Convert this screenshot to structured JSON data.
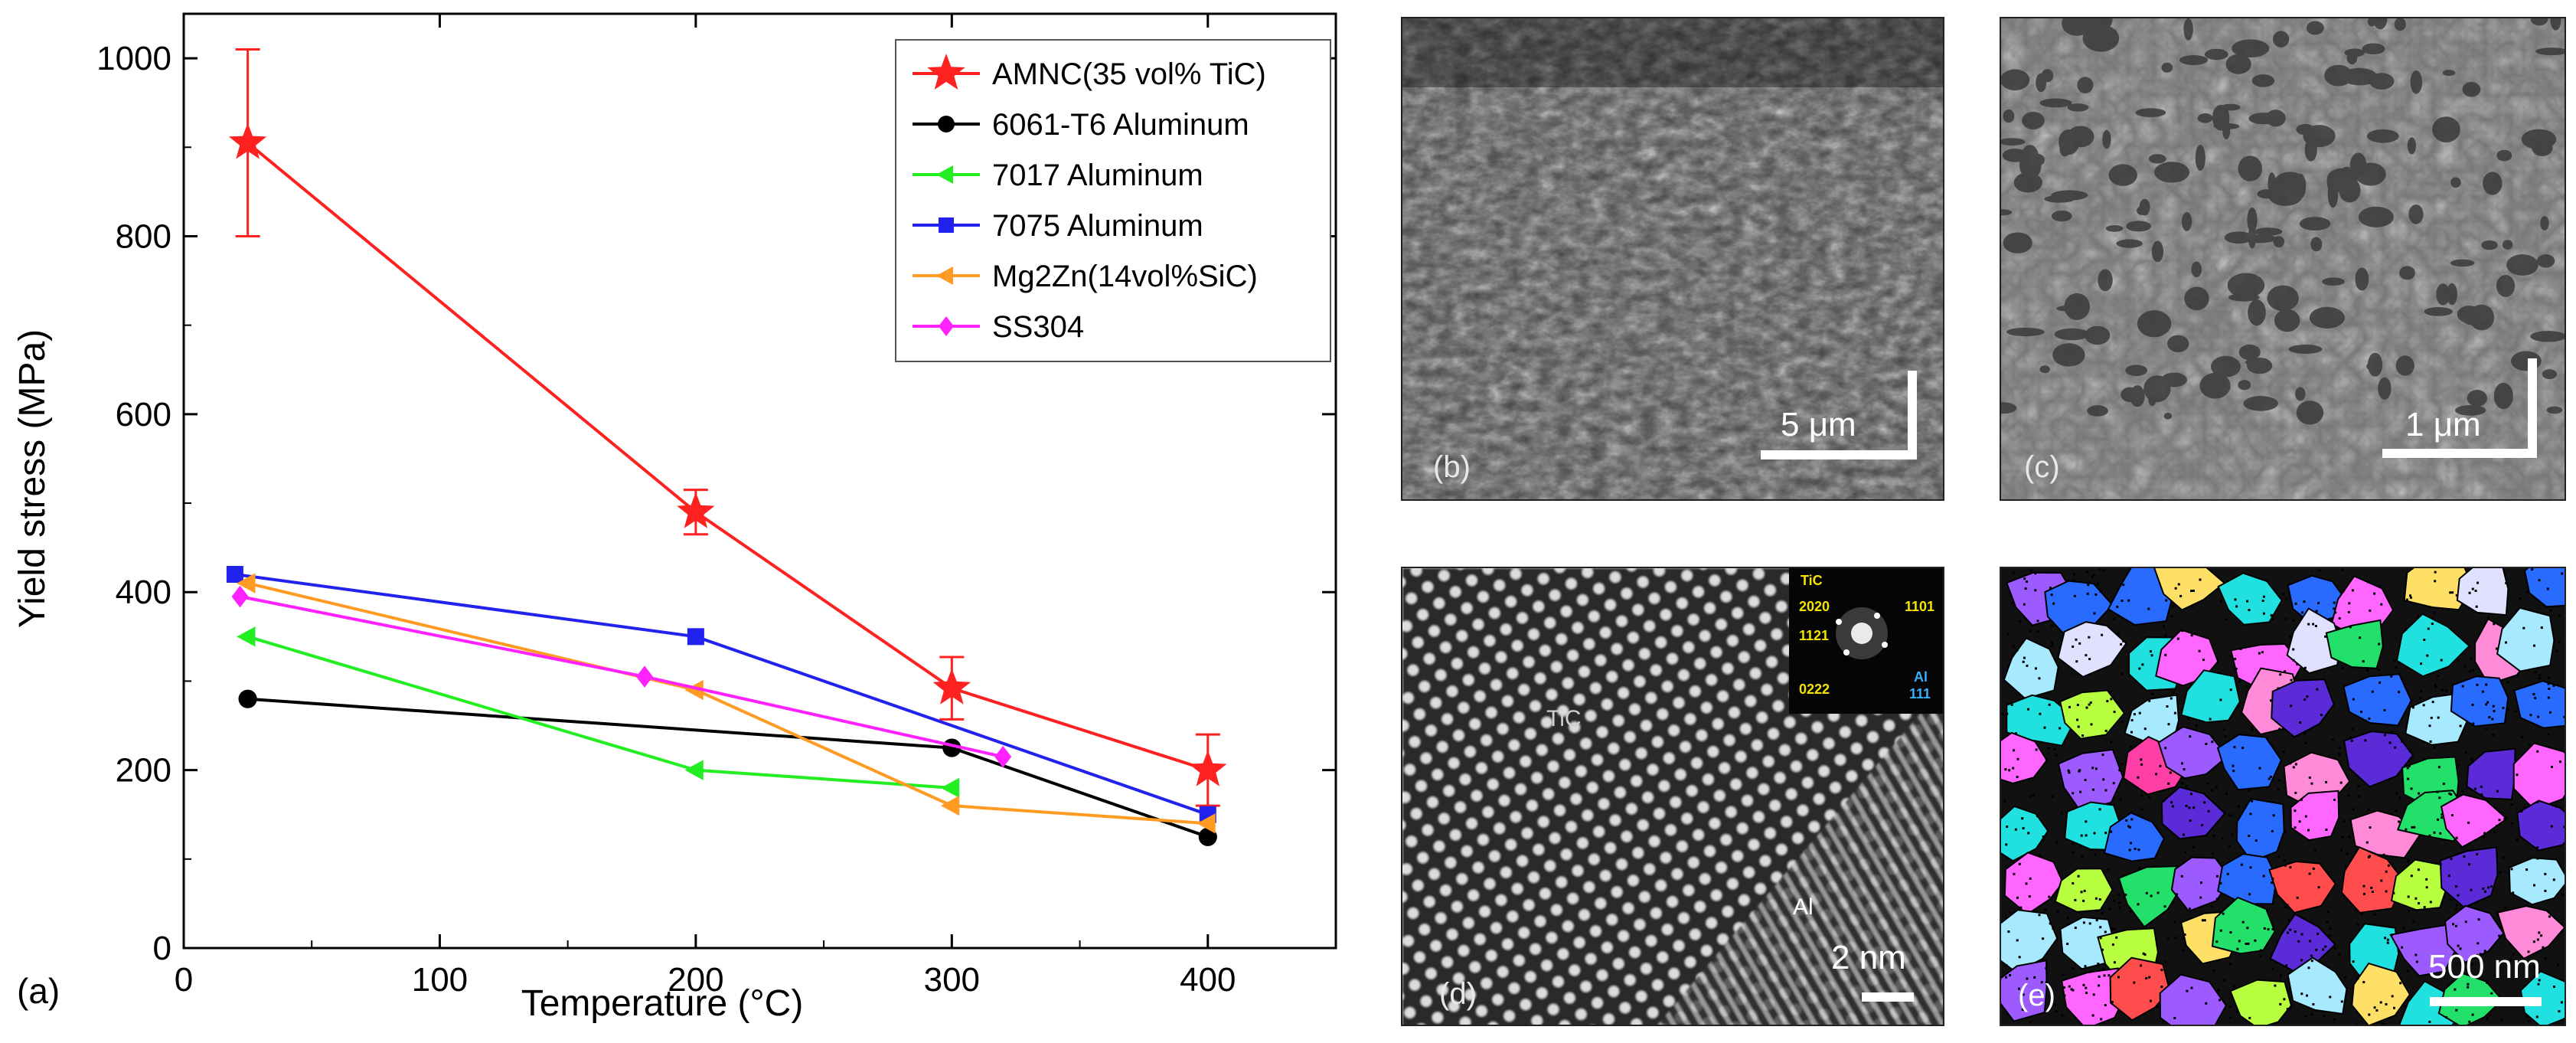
{
  "chart_data": {
    "type": "line",
    "panel_label": "(a)",
    "xlabel": "Temperature (°C)",
    "ylabel": "Yield stress (MPa)",
    "xlim": [
      0,
      450
    ],
    "ylim": [
      0,
      1050
    ],
    "xticks": [
      0,
      100,
      200,
      300,
      400
    ],
    "yticks": [
      0,
      200,
      400,
      600,
      800,
      1000
    ],
    "grid": false,
    "legend_position": "top-right",
    "series": [
      {
        "name": "AMNC(35 vol% TiC)",
        "color": "#ff2020",
        "marker": "star",
        "x": [
          25,
          200,
          300,
          400
        ],
        "y": [
          905,
          490,
          292,
          200
        ],
        "yerr": [
          105,
          25,
          35,
          40
        ]
      },
      {
        "name": "6061-T6 Aluminum",
        "color": "#000000",
        "marker": "circle",
        "x": [
          25,
          300,
          400
        ],
        "y": [
          280,
          225,
          125
        ]
      },
      {
        "name": "7017 Aluminum",
        "color": "#22ee22",
        "marker": "triangle-left",
        "x": [
          25,
          200,
          300
        ],
        "y": [
          350,
          200,
          180
        ]
      },
      {
        "name": "7075 Aluminum",
        "color": "#2222ee",
        "marker": "square",
        "x": [
          20,
          200,
          400
        ],
        "y": [
          420,
          350,
          150
        ]
      },
      {
        "name": "Mg2Zn(14vol%SiC)",
        "color": "#ff9a22",
        "marker": "triangle-left",
        "x": [
          25,
          200,
          300,
          400
        ],
        "y": [
          410,
          290,
          160,
          140
        ]
      },
      {
        "name": "SS304",
        "color": "#ff22ff",
        "marker": "diamond",
        "x": [
          22,
          180,
          320
        ],
        "y": [
          395,
          305,
          215
        ]
      }
    ]
  },
  "micrographs": {
    "b": {
      "label": "(b)",
      "scale": "5 μm"
    },
    "c": {
      "label": "(c)",
      "scale": "1 μm"
    },
    "d": {
      "label": "(d)",
      "scale": "2 nm",
      "phase_tic": "TiC",
      "phase_al": "Al",
      "inset": {
        "tic": "TiC",
        "r1": "2020",
        "r2": "1121",
        "r3": "0222",
        "r4": "1101",
        "al": "Al",
        "al_idx": "111"
      }
    },
    "e": {
      "label": "(e)",
      "scale": "500 nm"
    }
  }
}
